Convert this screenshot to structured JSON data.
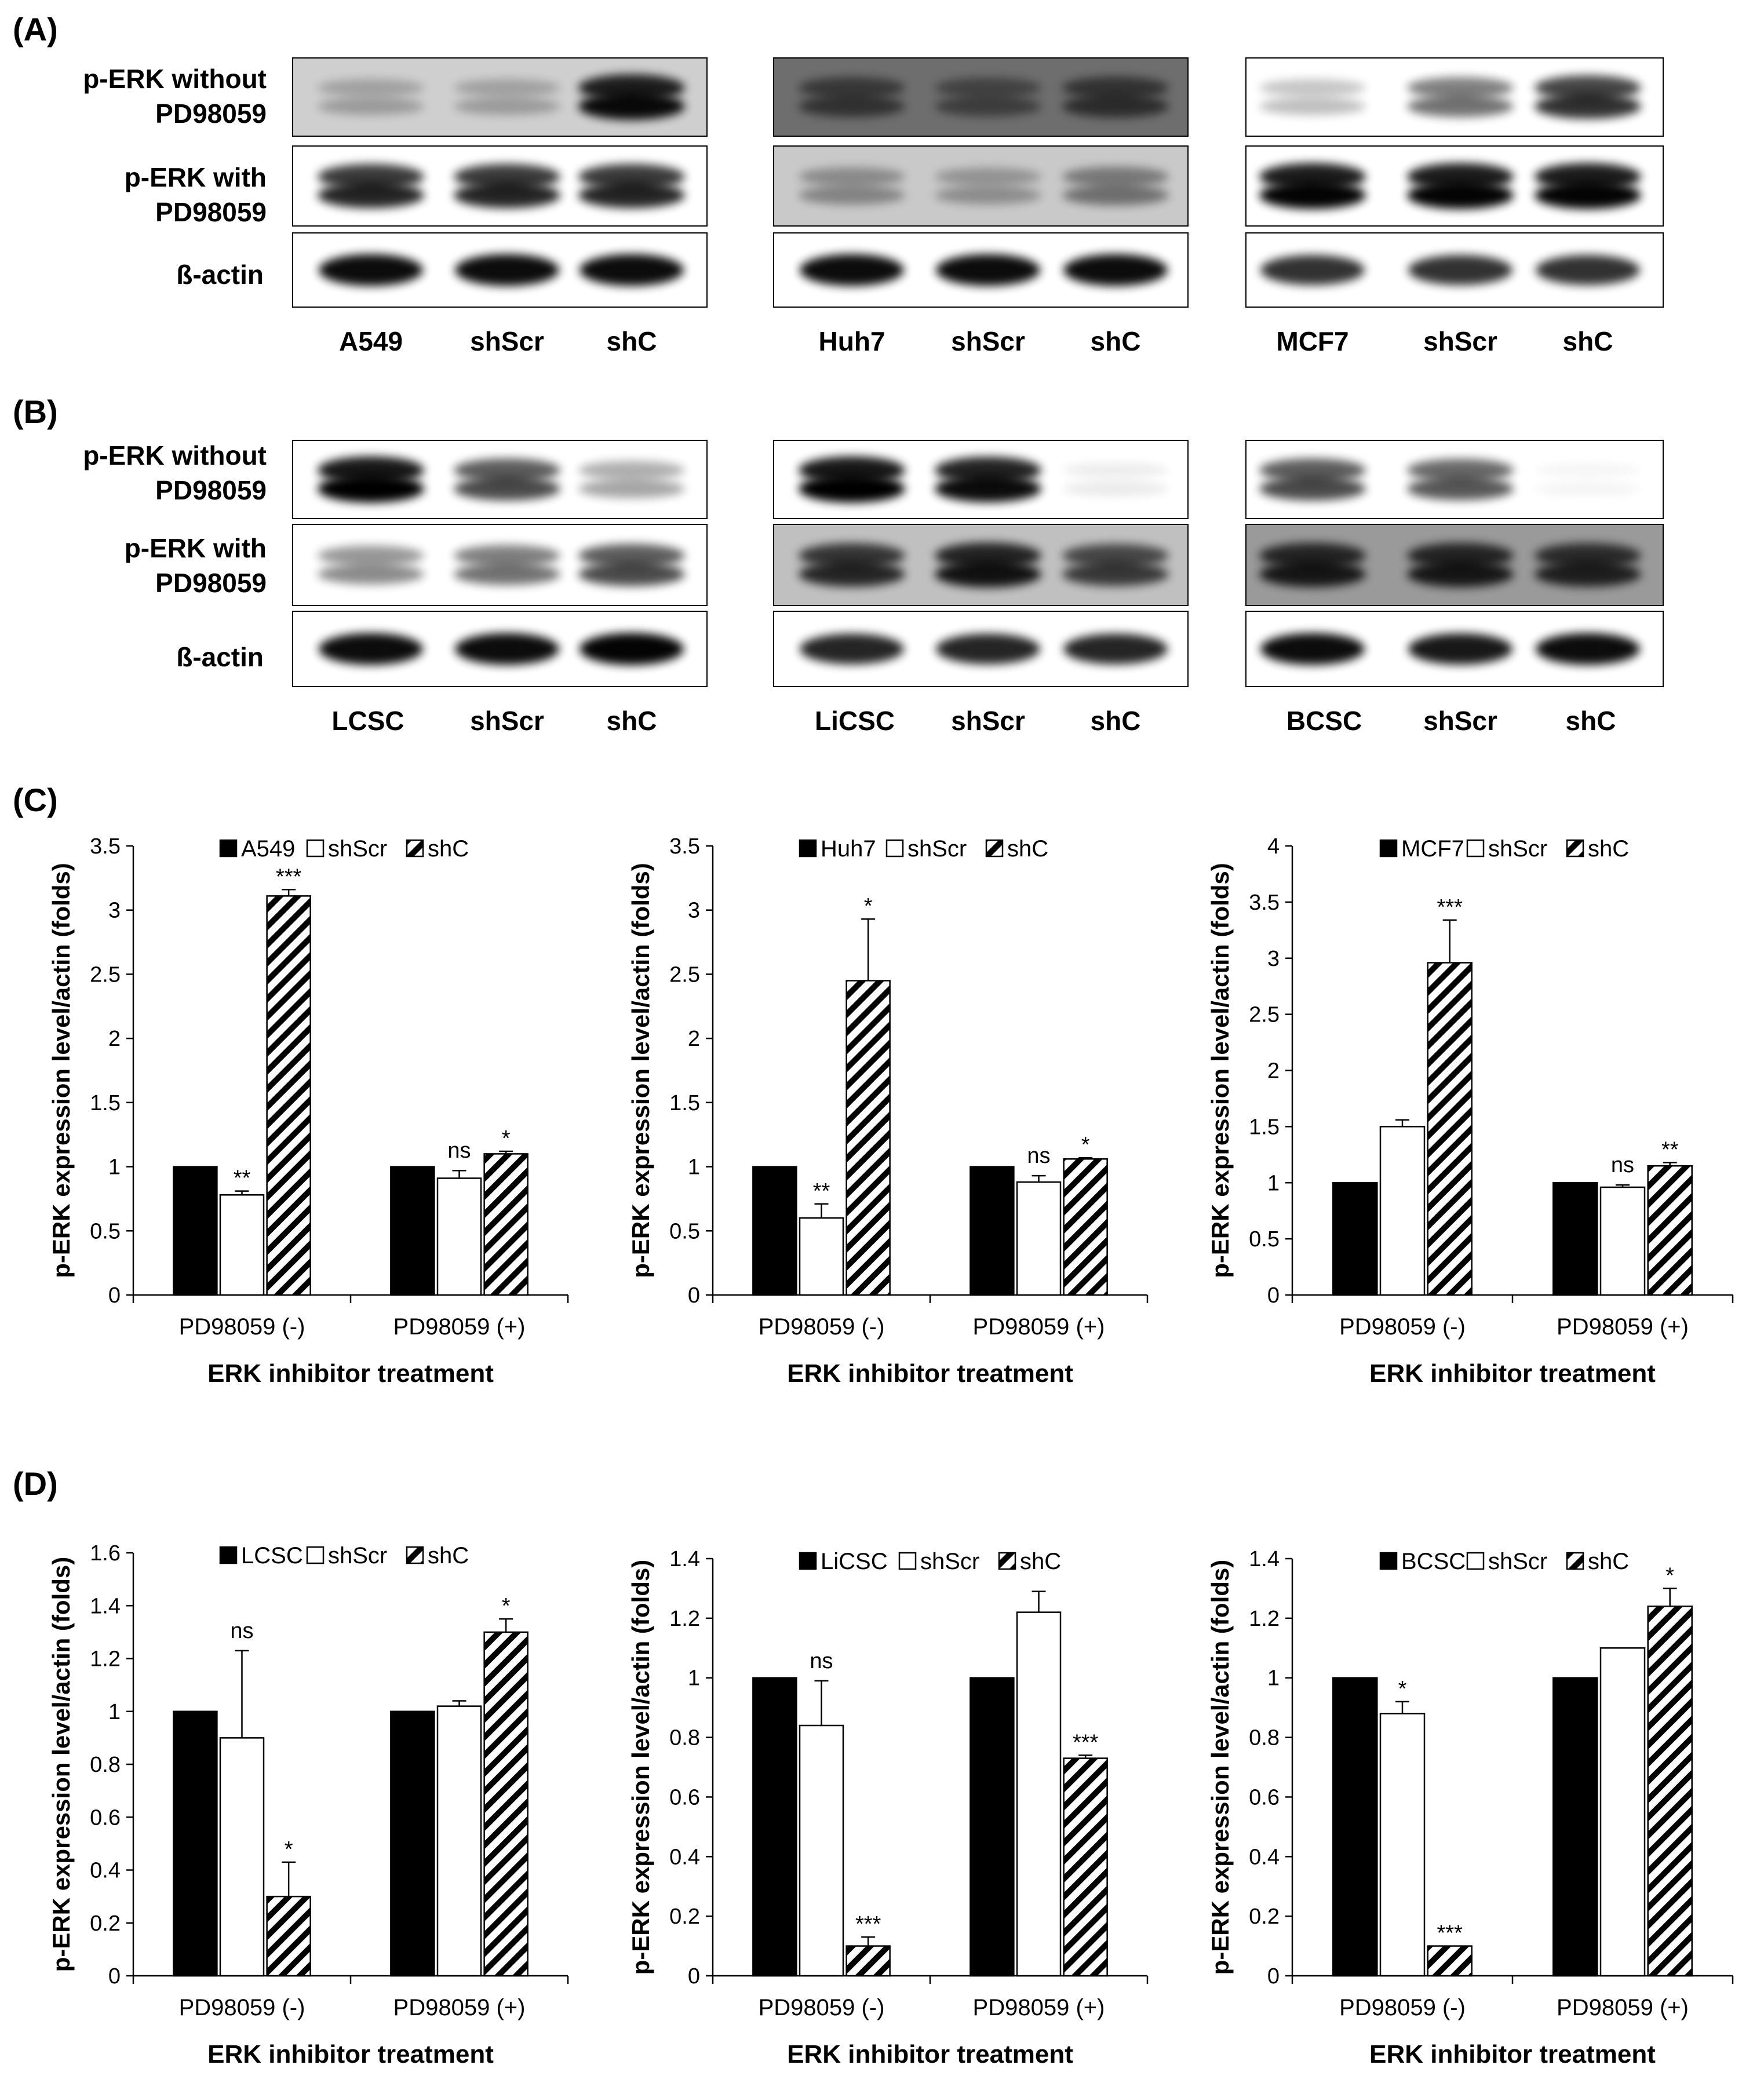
{
  "panels": {
    "A": "(A)",
    "B": "(B)",
    "C": "(C)",
    "D": "(D)"
  },
  "blot_rows": {
    "row1": [
      "p-ERK without",
      "PD98059"
    ],
    "row2": [
      "p-ERK with",
      "PD98059"
    ],
    "row3": "ß-actin"
  },
  "blots": {
    "A": [
      {
        "lanes": [
          "A549",
          "shScr",
          "shC"
        ]
      },
      {
        "lanes": [
          "Huh7",
          "shScr",
          "shC"
        ]
      },
      {
        "lanes": [
          "MCF7",
          "shScr",
          "shC"
        ]
      }
    ],
    "B": [
      {
        "lanes": [
          "LCSC",
          "shScr",
          "shC"
        ]
      },
      {
        "lanes": [
          "LiCSC",
          "shScr",
          "shC"
        ]
      },
      {
        "lanes": [
          "BCSC",
          "shScr",
          "shC"
        ]
      }
    ]
  },
  "chart_data": [
    {
      "panel": "C",
      "type": "bar",
      "categories": [
        "PD98059 (-)",
        "PD98059 (+)"
      ],
      "series": [
        {
          "name": "A549",
          "values": [
            1.0,
            1.0
          ],
          "errors": [
            0,
            0
          ],
          "sig": [
            "",
            ""
          ]
        },
        {
          "name": "shScr",
          "values": [
            0.78,
            0.91
          ],
          "errors": [
            0.03,
            0.06
          ],
          "sig": [
            "**",
            "ns"
          ]
        },
        {
          "name": "shC",
          "values": [
            3.11,
            1.1
          ],
          "errors": [
            0.05,
            0.02
          ],
          "sig": [
            "***",
            "*"
          ]
        }
      ],
      "xlabel": "ERK inhibitor treatment",
      "ylabel": "p-ERK expression level/actin (folds)",
      "ylim": [
        0,
        3.5
      ],
      "yticks": [
        "0",
        "0.5",
        "1",
        "1.5",
        "2",
        "2.5",
        "3",
        "3.5"
      ],
      "legend": "top-center"
    },
    {
      "panel": "C",
      "type": "bar",
      "categories": [
        "PD98059 (-)",
        "PD98059 (+)"
      ],
      "series": [
        {
          "name": "Huh7",
          "values": [
            1.0,
            1.0
          ],
          "errors": [
            0,
            0
          ],
          "sig": [
            "",
            ""
          ]
        },
        {
          "name": "shScr",
          "values": [
            0.6,
            0.88
          ],
          "errors": [
            0.11,
            0.05
          ],
          "sig": [
            "**",
            "ns"
          ]
        },
        {
          "name": "shC",
          "values": [
            2.45,
            1.06
          ],
          "errors": [
            0.48,
            0.01
          ],
          "sig": [
            "*",
            "*"
          ]
        }
      ],
      "xlabel": "ERK inhibitor treatment",
      "ylabel": "p-ERK expression level/actin (folds)",
      "ylim": [
        0,
        3.5
      ],
      "yticks": [
        "0",
        "0.5",
        "1",
        "1.5",
        "2",
        "2.5",
        "3",
        "3.5"
      ],
      "legend": "top-center"
    },
    {
      "panel": "C",
      "type": "bar",
      "categories": [
        "PD98059 (-)",
        "PD98059 (+)"
      ],
      "series": [
        {
          "name": "MCF7",
          "values": [
            1.0,
            1.0
          ],
          "errors": [
            0,
            0
          ],
          "sig": [
            "",
            ""
          ]
        },
        {
          "name": "shScr",
          "values": [
            1.5,
            0.96
          ],
          "errors": [
            0.06,
            0.02
          ],
          "sig": [
            "",
            "ns"
          ]
        },
        {
          "name": "shC",
          "values": [
            2.96,
            1.15
          ],
          "errors": [
            0.38,
            0.03
          ],
          "sig": [
            "***",
            "**"
          ]
        }
      ],
      "xlabel": "ERK inhibitor treatment",
      "ylabel": "p-ERK expression level/actin (folds)",
      "ylim": [
        0,
        4
      ],
      "yticks": [
        "0",
        "0.5",
        "1",
        "1.5",
        "2",
        "2.5",
        "3",
        "3.5",
        "4"
      ],
      "legend": "top-center"
    },
    {
      "panel": "D",
      "type": "bar",
      "categories": [
        "PD98059 (-)",
        "PD98059 (+)"
      ],
      "series": [
        {
          "name": "LCSC",
          "values": [
            1.0,
            1.0
          ],
          "errors": [
            0,
            0
          ],
          "sig": [
            "",
            ""
          ]
        },
        {
          "name": "shScr",
          "values": [
            0.9,
            1.02
          ],
          "errors": [
            0.33,
            0.02
          ],
          "sig": [
            "ns",
            ""
          ]
        },
        {
          "name": "shC",
          "values": [
            0.3,
            1.3
          ],
          "errors": [
            0.13,
            0.05
          ],
          "sig": [
            "*",
            "*"
          ]
        }
      ],
      "xlabel": "ERK inhibitor treatment",
      "ylabel": "p-ERK expression level/actin (folds)",
      "ylim": [
        0,
        1.6
      ],
      "yticks": [
        "0",
        "0.2",
        "0.4",
        "0.6",
        "0.8",
        "1",
        "1.2",
        "1.4",
        "1.6"
      ],
      "legend": "top-center"
    },
    {
      "panel": "D",
      "type": "bar",
      "categories": [
        "PD98059 (-)",
        "PD98059 (+)"
      ],
      "series": [
        {
          "name": "LiCSC",
          "values": [
            1.0,
            1.0
          ],
          "errors": [
            0,
            0
          ],
          "sig": [
            "",
            ""
          ]
        },
        {
          "name": "shScr",
          "values": [
            0.84,
            1.22
          ],
          "errors": [
            0.15,
            0.07
          ],
          "sig": [
            "ns",
            ""
          ]
        },
        {
          "name": "shC",
          "values": [
            0.1,
            0.73
          ],
          "errors": [
            0.03,
            0.01
          ],
          "sig": [
            "***",
            "***"
          ]
        }
      ],
      "xlabel": "ERK inhibitor treatment",
      "ylabel": "p-ERK expression level/actin (folds)",
      "ylim": [
        0,
        1.4
      ],
      "yticks": [
        "0",
        "0.2",
        "0.4",
        "0.6",
        "0.8",
        "1",
        "1.2",
        "1.4"
      ],
      "legend": "top-center"
    },
    {
      "panel": "D",
      "type": "bar",
      "categories": [
        "PD98059 (-)",
        "PD98059 (+)"
      ],
      "series": [
        {
          "name": "BCSC",
          "values": [
            1.0,
            1.0
          ],
          "errors": [
            0,
            0
          ],
          "sig": [
            "",
            ""
          ]
        },
        {
          "name": "shScr",
          "values": [
            0.88,
            1.1
          ],
          "errors": [
            0.04,
            0
          ],
          "sig": [
            "*",
            ""
          ]
        },
        {
          "name": "shC",
          "values": [
            0.1,
            1.24
          ],
          "errors": [
            0,
            0.06
          ],
          "sig": [
            "***",
            "*"
          ]
        }
      ],
      "xlabel": "ERK inhibitor treatment",
      "ylabel": "p-ERK expression level/actin (folds)",
      "ylim": [
        0,
        1.4
      ],
      "yticks": [
        "0",
        "0.2",
        "0.4",
        "0.6",
        "0.8",
        "1",
        "1.2",
        "1.4"
      ],
      "legend": "top-center"
    }
  ]
}
